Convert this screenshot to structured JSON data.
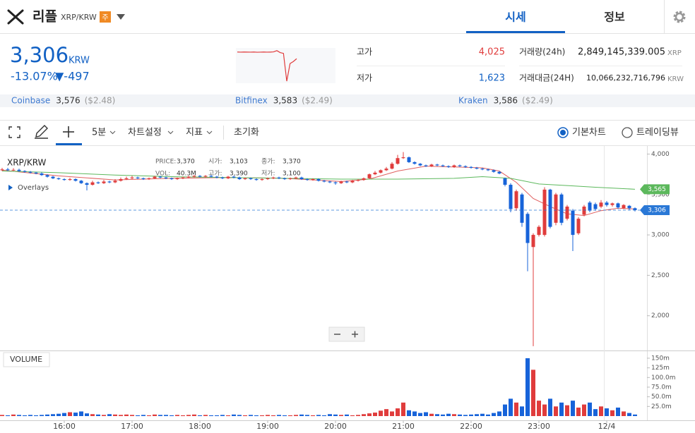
{
  "header": {
    "coin": "리플",
    "pair": "XRP/KRW",
    "badge": "주",
    "tabs": [
      "시세",
      "정보"
    ]
  },
  "summary": {
    "price": "3,306",
    "currency": "KRW",
    "change_rate": "-13.07%",
    "change": "▼-497",
    "stats": [
      {
        "label": "고가",
        "value": "4,025"
      },
      {
        "label": "저가",
        "value": "1,623"
      },
      {
        "label": "거래량(24h)",
        "value": "2,849,145,339.005",
        "unit": "XRP"
      },
      {
        "label": "거래대금(24H)",
        "value": "10,066,232,716,796",
        "unit": "KRW"
      }
    ],
    "sparkline": {
      "color": "#e03c3c",
      "drop_color": "#1763d9",
      "ylim": [
        1500,
        4100
      ],
      "values": [
        3800,
        3790,
        3800,
        3795,
        3790,
        3800,
        3785,
        3790,
        3800,
        3790,
        3795,
        3810,
        3900,
        3760,
        3700,
        1650,
        2950,
        3100,
        3306
      ]
    }
  },
  "exchanges": [
    {
      "name": "Coinbase",
      "price": "3,576",
      "usd": "($2.48)"
    },
    {
      "name": "Bitfinex",
      "price": "3,583",
      "usd": "($2.49)"
    },
    {
      "name": "Kraken",
      "price": "3,586",
      "usd": "($2.49)"
    }
  ],
  "toolbar": {
    "interval": "5분",
    "settings": "차트설정",
    "indicators": "지표",
    "reset": "초기화",
    "modes": [
      "기본차트",
      "트레이딩뷰"
    ]
  },
  "chart_data": {
    "type": "candlestick",
    "title": "XRP/KRW",
    "info": [
      [
        [
          "PRICE:",
          "3,370"
        ],
        [
          "시가:",
          "3,103"
        ],
        [
          "종가:",
          "3,370"
        ]
      ],
      [
        [
          "VOL:",
          "40.3M"
        ],
        [
          "고가:",
          "3,390"
        ],
        [
          "저가:",
          "3,100"
        ]
      ]
    ],
    "overlays": "Overlays",
    "up_color": "#e03c3c",
    "down_color": "#1763d9",
    "categories": [
      null,
      null,
      null,
      null,
      null,
      null,
      null,
      null,
      null,
      null,
      null,
      "16:00",
      null,
      null,
      null,
      null,
      null,
      null,
      null,
      null,
      null,
      null,
      null,
      "17:00",
      null,
      null,
      null,
      null,
      null,
      null,
      null,
      null,
      null,
      null,
      null,
      "18:00",
      null,
      null,
      null,
      null,
      null,
      null,
      null,
      null,
      null,
      null,
      null,
      "19:00",
      null,
      null,
      null,
      null,
      null,
      null,
      null,
      null,
      null,
      null,
      null,
      "20:00",
      null,
      null,
      null,
      null,
      null,
      null,
      null,
      null,
      null,
      null,
      null,
      "21:00",
      null,
      null,
      null,
      null,
      null,
      null,
      null,
      null,
      null,
      null,
      null,
      "22:00",
      null,
      null,
      null,
      null,
      null,
      null,
      null,
      null,
      null,
      null,
      null,
      "23:00",
      null,
      null,
      null,
      null,
      null,
      null,
      null,
      null,
      null,
      null,
      null,
      "12/4",
      null,
      null,
      null,
      null,
      null
    ],
    "open": [
      3800,
      3810,
      3800,
      3805,
      3790,
      3780,
      3770,
      3760,
      3740,
      3720,
      3700,
      3690,
      3680,
      3690,
      3670,
      3640,
      3620,
      3650,
      3640,
      3660,
      3650,
      3670,
      3690,
      3700,
      3710,
      3700,
      3690,
      3700,
      3720,
      3710,
      3700,
      3690,
      3700,
      3710,
      3720,
      3730,
      3720,
      3730,
      3720,
      3710,
      3700,
      3720,
      3710,
      3690,
      3700,
      3690,
      3680,
      3690,
      3700,
      3710,
      3700,
      3690,
      3700,
      3710,
      3690,
      3680,
      3690,
      3670,
      3660,
      3650,
      3640,
      3660,
      3650,
      3670,
      3680,
      3700,
      3750,
      3770,
      3800,
      3820,
      3880,
      3950,
      3960,
      3900,
      3880,
      3860,
      3850,
      3870,
      3860,
      3850,
      3840,
      3860,
      3850,
      3840,
      3830,
      3820,
      3810,
      3800,
      3780,
      3700,
      3620,
      3330,
      3500,
      3260,
      2850,
      3000,
      3000,
      3560,
      3150,
      3500,
      3200,
      3300,
      3020,
      3250,
      3400,
      3380,
      3350,
      3400,
      3370,
      3390,
      3330,
      3360,
      3330
    ],
    "high": [
      3830,
      3830,
      3825,
      3820,
      3800,
      3790,
      3780,
      3775,
      3750,
      3730,
      3710,
      3700,
      3705,
      3700,
      3680,
      3650,
      3670,
      3660,
      3680,
      3670,
      3690,
      3710,
      3720,
      3730,
      3720,
      3710,
      3710,
      3730,
      3730,
      3720,
      3710,
      3710,
      3720,
      3730,
      3740,
      3740,
      3740,
      3740,
      3730,
      3720,
      3730,
      3730,
      3720,
      3710,
      3710,
      3700,
      3700,
      3710,
      3720,
      3720,
      3710,
      3710,
      3720,
      3720,
      3700,
      3700,
      3700,
      3680,
      3670,
      3660,
      3670,
      3670,
      3680,
      3690,
      3710,
      3760,
      3790,
      3810,
      3840,
      3900,
      3990,
      4025,
      3970,
      3910,
      3890,
      3870,
      3880,
      3880,
      3870,
      3860,
      3870,
      3870,
      3860,
      3850,
      3840,
      3830,
      3820,
      3810,
      3790,
      3710,
      3640,
      3560,
      3520,
      3280,
      3020,
      3120,
      3590,
      3570,
      3520,
      3520,
      3370,
      3320,
      3220,
      3370,
      3420,
      3400,
      3430,
      3420,
      3400,
      3400,
      3380,
      3370,
      3340
    ],
    "low": [
      3790,
      3790,
      3790,
      3780,
      3770,
      3760,
      3750,
      3730,
      3710,
      3690,
      3680,
      3670,
      3670,
      3660,
      3630,
      3550,
      3610,
      3630,
      3630,
      3640,
      3640,
      3660,
      3680,
      3690,
      3690,
      3680,
      3680,
      3690,
      3700,
      3690,
      3680,
      3680,
      3690,
      3700,
      3710,
      3710,
      3710,
      3710,
      3700,
      3690,
      3690,
      3700,
      3680,
      3680,
      3680,
      3670,
      3670,
      3680,
      3690,
      3690,
      3680,
      3680,
      3690,
      3680,
      3670,
      3670,
      3660,
      3650,
      3640,
      3620,
      3630,
      3640,
      3640,
      3660,
      3670,
      3690,
      3740,
      3760,
      3790,
      3810,
      3870,
      3940,
      3890,
      3870,
      3850,
      3840,
      3840,
      3850,
      3840,
      3830,
      3830,
      3840,
      3830,
      3820,
      3810,
      3800,
      3790,
      3770,
      3750,
      3600,
      3280,
      3300,
      3100,
      2550,
      1623,
      2980,
      2980,
      3080,
      3120,
      3120,
      3180,
      2800,
      3000,
      3230,
      3280,
      3300,
      3330,
      3350,
      3350,
      3320,
      3320,
      3310,
      3290
    ],
    "close": [
      3810,
      3800,
      3805,
      3790,
      3780,
      3770,
      3760,
      3740,
      3720,
      3700,
      3690,
      3680,
      3690,
      3670,
      3640,
      3620,
      3650,
      3640,
      3660,
      3650,
      3670,
      3690,
      3700,
      3710,
      3700,
      3690,
      3700,
      3720,
      3710,
      3700,
      3690,
      3700,
      3710,
      3720,
      3730,
      3720,
      3730,
      3720,
      3710,
      3700,
      3720,
      3710,
      3690,
      3700,
      3690,
      3680,
      3690,
      3700,
      3710,
      3700,
      3690,
      3700,
      3710,
      3690,
      3680,
      3690,
      3670,
      3660,
      3650,
      3640,
      3660,
      3650,
      3670,
      3680,
      3700,
      3750,
      3770,
      3800,
      3820,
      3880,
      3950,
      3960,
      3900,
      3880,
      3860,
      3850,
      3870,
      3860,
      3850,
      3840,
      3860,
      3850,
      3840,
      3830,
      3820,
      3810,
      3800,
      3780,
      3760,
      3620,
      3320,
      3540,
      3150,
      2900,
      3000,
      3100,
      3560,
      3100,
      3500,
      3150,
      3350,
      3000,
      3200,
      3350,
      3300,
      3320,
      3400,
      3370,
      3390,
      3340,
      3370,
      3330,
      3306
    ],
    "ylim": [
      1570,
      4100
    ],
    "yticks": [
      {
        "value": 2000,
        "label": "2,000"
      },
      {
        "value": 2500,
        "label": "2,500"
      },
      {
        "value": 3000,
        "label": "3,000"
      },
      {
        "value": 3500,
        "label": "3,500"
      },
      {
        "value": 4000,
        "label": "4,000"
      }
    ],
    "moving_averages": [
      {
        "color": "#e06060",
        "x": [
          0,
          10,
          20,
          30,
          40,
          50,
          60,
          65,
          70,
          75,
          80,
          85,
          88,
          91,
          94,
          97,
          100,
          103,
          106,
          109,
          112
        ],
        "values": [
          3800,
          3730,
          3680,
          3700,
          3710,
          3700,
          3660,
          3690,
          3790,
          3850,
          3840,
          3830,
          3790,
          3650,
          3450,
          3350,
          3260,
          3240,
          3300,
          3330,
          3320
        ]
      },
      {
        "color": "#5cb85c",
        "x": [
          0,
          10,
          20,
          30,
          40,
          50,
          60,
          70,
          80,
          85,
          90,
          95,
          100,
          105,
          112
        ],
        "values": [
          3790,
          3770,
          3740,
          3720,
          3710,
          3700,
          3690,
          3690,
          3700,
          3720,
          3700,
          3630,
          3610,
          3590,
          3565
        ]
      }
    ],
    "price_tags": [
      {
        "value": 3565,
        "label": "3,565",
        "color": "#5cb85c"
      },
      {
        "value": 3306,
        "label": "3,306",
        "color": "#2a78d6"
      }
    ],
    "volume": {
      "title": "VOLUME",
      "values": [
        3,
        2,
        4,
        3,
        2,
        3,
        2,
        3,
        4,
        5,
        6,
        8,
        10,
        9,
        12,
        7,
        5,
        4,
        3,
        5,
        4,
        3,
        4,
        3,
        2,
        3,
        2,
        4,
        3,
        3,
        2,
        3,
        2,
        3,
        4,
        2,
        3,
        2,
        2,
        3,
        2,
        4,
        3,
        2,
        3,
        2,
        2,
        3,
        2,
        3,
        2,
        2,
        3,
        4,
        3,
        2,
        3,
        2,
        5,
        4,
        3,
        4,
        2,
        3,
        5,
        7,
        9,
        14,
        18,
        12,
        20,
        35,
        15,
        12,
        8,
        10,
        6,
        5,
        4,
        6,
        5,
        4,
        3,
        4,
        5,
        6,
        4,
        8,
        12,
        30,
        45,
        35,
        25,
        150,
        120,
        40,
        30,
        45,
        25,
        35,
        28,
        40,
        22,
        30,
        35,
        18,
        25,
        20,
        15,
        22,
        12,
        8,
        4
      ],
      "ylim": [
        0,
        170
      ],
      "yticks": [
        {
          "value": 25,
          "label": "25.0m"
        },
        {
          "value": 50,
          "label": "50.0m"
        },
        {
          "value": 75,
          "label": "75.0m"
        },
        {
          "value": 100,
          "label": "100.0m"
        },
        {
          "value": 125,
          "label": "125m"
        },
        {
          "value": 150,
          "label": "150m"
        }
      ]
    }
  }
}
